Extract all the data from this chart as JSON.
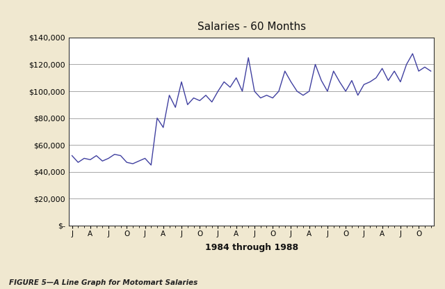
{
  "title": "Salaries - 60 Months",
  "xlabel": "1984 through 1988",
  "line_color": "#4040a0",
  "outer_bg_color": "#f0e8d0",
  "plot_bg_color": "#ffffff",
  "ylim": [
    0,
    140000
  ],
  "ytick_step": 20000,
  "caption": "FIGURE 5—A Line Graph for Motomart Salaries",
  "values": [
    52000,
    47000,
    50000,
    49000,
    52000,
    48000,
    50000,
    53000,
    52000,
    47000,
    46000,
    48000,
    50000,
    45000,
    80000,
    73000,
    97000,
    88000,
    107000,
    90000,
    95000,
    93000,
    97000,
    92000,
    100000,
    107000,
    103000,
    110000,
    100000,
    125000,
    100000,
    95000,
    97000,
    95000,
    100000,
    115000,
    107000,
    100000,
    97000,
    100000,
    120000,
    108000,
    100000,
    115000,
    107000,
    100000,
    108000,
    97000,
    105000,
    107000,
    110000,
    117000,
    108000,
    115000,
    107000,
    120000,
    128000,
    115000,
    118000,
    115000
  ]
}
